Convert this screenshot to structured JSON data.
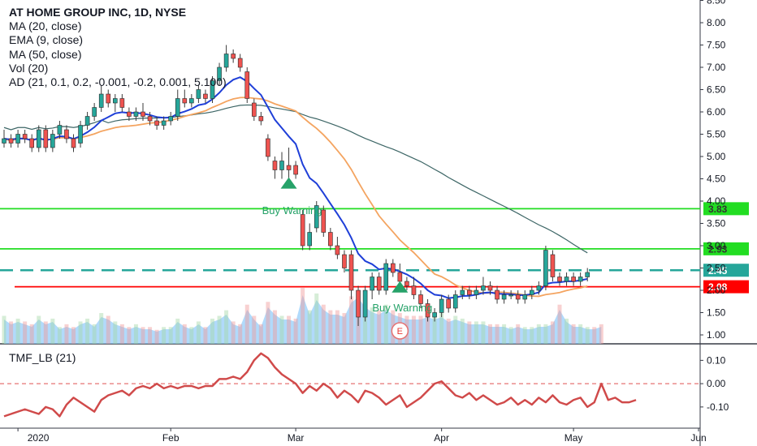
{
  "chart_data": [
    {
      "type": "candlestick",
      "title": "AT HOME GROUP INC, 1D, NYSE",
      "indicators": [
        "MA (20, close)",
        "EMA (9, close)",
        "MA (50, close)",
        "Vol (20)",
        "AD (21, 0.1, 0.2, -0.001, -0.2, 0.001, 5.100)"
      ],
      "y_ticks": [
        "8.50",
        "8.00",
        "7.50",
        "7.00",
        "6.50",
        "6.00",
        "5.50",
        "5.00",
        "4.50",
        "4.00",
        "3.50",
        "3.00",
        "2.50",
        "2.00",
        "1.50",
        "1.00"
      ],
      "ylim": [
        0.9,
        8.6
      ],
      "x_ticks": [
        "2020",
        "Feb",
        "Mar",
        "Apr",
        "May",
        "Jun"
      ],
      "horizontal_levels": [
        {
          "value": 3.83,
          "label": "3.83",
          "color": "#22dd22",
          "style": "solid"
        },
        {
          "value": 2.93,
          "label": "2.93",
          "color": "#22dd22",
          "style": "solid"
        },
        {
          "value": 2.45,
          "label": "2.45",
          "color": "#26a69a",
          "style": "dashed"
        },
        {
          "value": 2.08,
          "label": "2.08",
          "color": "#ff0000",
          "style": "solid"
        }
      ],
      "annotations": [
        {
          "text": "Buy Warning",
          "near_value": 3.8,
          "arrow_at": 4.28
        },
        {
          "text": "Buy Warning",
          "near_value": 1.62,
          "arrow_at": 1.95
        },
        {
          "text": "E",
          "kind": "earnings-marker"
        }
      ],
      "candles": [
        {
          "o": 5.3,
          "h": 5.6,
          "l": 5.2,
          "c": 5.4
        },
        {
          "o": 5.4,
          "h": 5.5,
          "l": 5.2,
          "c": 5.3
        },
        {
          "o": 5.3,
          "h": 5.6,
          "l": 5.2,
          "c": 5.5
        },
        {
          "o": 5.5,
          "h": 5.6,
          "l": 5.3,
          "c": 5.4
        },
        {
          "o": 5.4,
          "h": 5.5,
          "l": 5.1,
          "c": 5.2
        },
        {
          "o": 5.2,
          "h": 5.7,
          "l": 5.1,
          "c": 5.6
        },
        {
          "o": 5.6,
          "h": 5.7,
          "l": 5.1,
          "c": 5.2
        },
        {
          "o": 5.2,
          "h": 5.6,
          "l": 5.1,
          "c": 5.5
        },
        {
          "o": 5.5,
          "h": 5.8,
          "l": 5.4,
          "c": 5.7
        },
        {
          "o": 5.6,
          "h": 5.7,
          "l": 5.3,
          "c": 5.4
        },
        {
          "o": 5.4,
          "h": 5.5,
          "l": 5.1,
          "c": 5.2
        },
        {
          "o": 5.3,
          "h": 5.8,
          "l": 5.2,
          "c": 5.7
        },
        {
          "o": 5.7,
          "h": 6.0,
          "l": 5.6,
          "c": 5.9
        },
        {
          "o": 5.9,
          "h": 6.2,
          "l": 5.8,
          "c": 6.1
        },
        {
          "o": 6.1,
          "h": 6.6,
          "l": 6.0,
          "c": 6.4
        },
        {
          "o": 6.4,
          "h": 6.5,
          "l": 6.1,
          "c": 6.2
        },
        {
          "o": 6.2,
          "h": 6.4,
          "l": 6.0,
          "c": 6.3
        },
        {
          "o": 6.3,
          "h": 6.4,
          "l": 6.0,
          "c": 6.1
        },
        {
          "o": 6.0,
          "h": 6.1,
          "l": 5.8,
          "c": 5.9
        },
        {
          "o": 5.9,
          "h": 6.1,
          "l": 5.8,
          "c": 6.0
        },
        {
          "o": 6.0,
          "h": 6.2,
          "l": 5.8,
          "c": 5.9
        },
        {
          "o": 5.9,
          "h": 6.0,
          "l": 5.7,
          "c": 5.8
        },
        {
          "o": 5.8,
          "h": 5.9,
          "l": 5.6,
          "c": 5.7
        },
        {
          "o": 5.7,
          "h": 5.9,
          "l": 5.6,
          "c": 5.8
        },
        {
          "o": 5.8,
          "h": 6.0,
          "l": 5.7,
          "c": 5.9
        },
        {
          "o": 5.9,
          "h": 6.5,
          "l": 5.8,
          "c": 6.3
        },
        {
          "o": 6.3,
          "h": 6.5,
          "l": 6.1,
          "c": 6.2
        },
        {
          "o": 6.2,
          "h": 6.4,
          "l": 6.1,
          "c": 6.3
        },
        {
          "o": 6.3,
          "h": 6.6,
          "l": 6.2,
          "c": 6.5
        },
        {
          "o": 6.4,
          "h": 6.5,
          "l": 6.2,
          "c": 6.3
        },
        {
          "o": 6.3,
          "h": 6.8,
          "l": 6.2,
          "c": 6.7
        },
        {
          "o": 6.7,
          "h": 7.1,
          "l": 6.6,
          "c": 7.0
        },
        {
          "o": 7.0,
          "h": 7.5,
          "l": 6.9,
          "c": 7.3
        },
        {
          "o": 7.3,
          "h": 7.4,
          "l": 7.1,
          "c": 7.2
        },
        {
          "o": 7.2,
          "h": 7.3,
          "l": 6.9,
          "c": 7.0
        },
        {
          "o": 6.9,
          "h": 7.0,
          "l": 6.2,
          "c": 6.3
        },
        {
          "o": 6.2,
          "h": 6.3,
          "l": 5.8,
          "c": 5.9
        },
        {
          "o": 5.9,
          "h": 6.0,
          "l": 5.7,
          "c": 5.8
        },
        {
          "o": 5.4,
          "h": 5.5,
          "l": 4.9,
          "c": 5.0
        },
        {
          "o": 4.9,
          "h": 5.0,
          "l": 4.5,
          "c": 4.7
        },
        {
          "o": 4.7,
          "h": 5.1,
          "l": 4.5,
          "c": 4.9
        },
        {
          "o": 4.8,
          "h": 5.2,
          "l": 4.5,
          "c": 4.7
        },
        {
          "o": 4.8,
          "h": 4.9,
          "l": 4.5,
          "c": 4.6
        },
        {
          "o": 3.7,
          "h": 3.8,
          "l": 2.9,
          "c": 3.0
        },
        {
          "o": 3.0,
          "h": 3.5,
          "l": 2.9,
          "c": 3.3
        },
        {
          "o": 3.4,
          "h": 4.0,
          "l": 3.3,
          "c": 3.9
        },
        {
          "o": 3.8,
          "h": 3.9,
          "l": 3.2,
          "c": 3.3
        },
        {
          "o": 3.3,
          "h": 3.4,
          "l": 2.9,
          "c": 3.0
        },
        {
          "o": 3.0,
          "h": 3.2,
          "l": 2.7,
          "c": 2.8
        },
        {
          "o": 2.8,
          "h": 2.9,
          "l": 2.4,
          "c": 2.5
        },
        {
          "o": 2.8,
          "h": 2.9,
          "l": 1.8,
          "c": 2.0
        },
        {
          "o": 2.0,
          "h": 2.1,
          "l": 1.2,
          "c": 1.4
        },
        {
          "o": 1.4,
          "h": 2.1,
          "l": 1.3,
          "c": 2.0
        },
        {
          "o": 2.0,
          "h": 2.4,
          "l": 1.8,
          "c": 2.3
        },
        {
          "o": 2.3,
          "h": 2.4,
          "l": 1.9,
          "c": 2.0
        },
        {
          "o": 2.0,
          "h": 2.7,
          "l": 1.9,
          "c": 2.6
        },
        {
          "o": 2.6,
          "h": 2.7,
          "l": 2.3,
          "c": 2.4
        },
        {
          "o": 2.4,
          "h": 2.6,
          "l": 2.1,
          "c": 2.2
        },
        {
          "o": 2.2,
          "h": 2.3,
          "l": 2.0,
          "c": 2.1
        },
        {
          "o": 2.1,
          "h": 2.3,
          "l": 1.8,
          "c": 1.9
        },
        {
          "o": 1.9,
          "h": 2.0,
          "l": 1.6,
          "c": 1.7
        },
        {
          "o": 1.7,
          "h": 1.8,
          "l": 1.3,
          "c": 1.4
        },
        {
          "o": 1.4,
          "h": 1.6,
          "l": 1.3,
          "c": 1.5
        },
        {
          "o": 1.5,
          "h": 1.9,
          "l": 1.4,
          "c": 1.8
        },
        {
          "o": 1.8,
          "h": 1.9,
          "l": 1.5,
          "c": 1.6
        },
        {
          "o": 1.6,
          "h": 2.0,
          "l": 1.5,
          "c": 1.9
        },
        {
          "o": 1.9,
          "h": 2.1,
          "l": 1.8,
          "c": 2.0
        },
        {
          "o": 2.0,
          "h": 2.1,
          "l": 1.8,
          "c": 1.9
        },
        {
          "o": 1.9,
          "h": 2.1,
          "l": 1.8,
          "c": 2.0
        },
        {
          "o": 2.0,
          "h": 2.3,
          "l": 1.9,
          "c": 2.1
        },
        {
          "o": 2.1,
          "h": 2.2,
          "l": 1.9,
          "c": 2.0
        },
        {
          "o": 2.0,
          "h": 2.1,
          "l": 1.7,
          "c": 1.8
        },
        {
          "o": 1.8,
          "h": 2.0,
          "l": 1.7,
          "c": 1.9
        },
        {
          "o": 1.9,
          "h": 2.0,
          "l": 1.8,
          "c": 1.9
        },
        {
          "o": 1.9,
          "h": 2.0,
          "l": 1.7,
          "c": 1.8
        },
        {
          "o": 1.8,
          "h": 2.0,
          "l": 1.7,
          "c": 1.9
        },
        {
          "o": 1.9,
          "h": 2.1,
          "l": 1.8,
          "c": 2.0
        },
        {
          "o": 2.0,
          "h": 2.2,
          "l": 1.9,
          "c": 2.1
        },
        {
          "o": 2.1,
          "h": 3.0,
          "l": 2.0,
          "c": 2.9
        },
        {
          "o": 2.8,
          "h": 2.9,
          "l": 2.2,
          "c": 2.3
        },
        {
          "o": 2.3,
          "h": 2.4,
          "l": 2.1,
          "c": 2.2
        },
        {
          "o": 2.2,
          "h": 2.4,
          "l": 2.1,
          "c": 2.3
        },
        {
          "o": 2.3,
          "h": 2.4,
          "l": 2.1,
          "c": 2.2
        },
        {
          "o": 2.2,
          "h": 2.4,
          "l": 2.1,
          "c": 2.3
        },
        {
          "o": 2.3,
          "h": 2.5,
          "l": 2.2,
          "c": 2.4
        }
      ],
      "volume_relative": [
        0.5,
        0.4,
        0.45,
        0.4,
        0.35,
        0.5,
        0.4,
        0.45,
        0.3,
        0.35,
        0.3,
        0.4,
        0.45,
        0.35,
        0.55,
        0.5,
        0.4,
        0.35,
        0.3,
        0.35,
        0.3,
        0.3,
        0.25,
        0.3,
        0.3,
        0.45,
        0.35,
        0.3,
        0.4,
        0.3,
        0.45,
        0.5,
        0.6,
        0.4,
        0.35,
        0.7,
        0.5,
        0.35,
        0.75,
        0.6,
        0.5,
        0.5,
        0.45,
        1.0,
        0.6,
        0.9,
        0.7,
        0.6,
        0.6,
        0.55,
        0.85,
        0.95,
        0.75,
        0.65,
        0.6,
        0.7,
        0.6,
        0.55,
        0.5,
        0.5,
        0.5,
        0.55,
        0.5,
        0.55,
        0.45,
        0.5,
        0.45,
        0.4,
        0.4,
        0.4,
        0.35,
        0.35,
        0.35,
        0.3,
        0.35,
        0.3,
        0.3,
        0.35,
        0.35,
        0.4,
        0.7,
        0.45,
        0.35,
        0.35,
        0.3,
        0.3,
        0.35
      ]
    },
    {
      "type": "line",
      "title": "TMF_LB (21)",
      "y_ticks": [
        "0.10",
        "0.00",
        "-0.10"
      ],
      "ylim": [
        -0.17,
        0.15
      ],
      "zero_line": {
        "value": 0.0,
        "color": "#e05050",
        "style": "dashed"
      },
      "values": [
        -0.14,
        -0.13,
        -0.12,
        -0.11,
        -0.12,
        -0.13,
        -0.1,
        -0.11,
        -0.14,
        -0.09,
        -0.06,
        -0.08,
        -0.1,
        -0.12,
        -0.07,
        -0.05,
        -0.04,
        -0.03,
        -0.05,
        -0.02,
        -0.01,
        -0.02,
        0.0,
        -0.02,
        -0.01,
        -0.02,
        -0.01,
        -0.01,
        -0.02,
        -0.01,
        -0.01,
        0.02,
        0.02,
        0.03,
        0.02,
        0.05,
        0.1,
        0.13,
        0.11,
        0.07,
        0.04,
        0.02,
        0.0,
        -0.04,
        -0.01,
        -0.03,
        0.0,
        -0.02,
        -0.06,
        -0.03,
        -0.05,
        -0.08,
        -0.03,
        -0.04,
        -0.06,
        -0.09,
        -0.07,
        -0.05,
        -0.1,
        -0.08,
        -0.06,
        -0.03,
        0.0,
        0.01,
        -0.02,
        -0.05,
        -0.06,
        -0.04,
        -0.07,
        -0.05,
        -0.07,
        -0.09,
        -0.08,
        -0.06,
        -0.09,
        -0.07,
        -0.09,
        -0.06,
        -0.08,
        -0.05,
        -0.08,
        -0.09,
        -0.07,
        -0.06,
        -0.1,
        -0.08,
        0.0,
        -0.07,
        -0.06,
        -0.08,
        -0.08,
        -0.07
      ]
    }
  ],
  "price_tags": {
    "up": "#2e7d32",
    "dn": "#e53935"
  },
  "colors": {
    "up": "#26a69a",
    "down": "#ef5350",
    "ma20": "#f4a460",
    "ema9": "#1f3fd8",
    "ma50": "#3d6666",
    "volume": "#90caf9",
    "tmf": "#d04a4a"
  }
}
